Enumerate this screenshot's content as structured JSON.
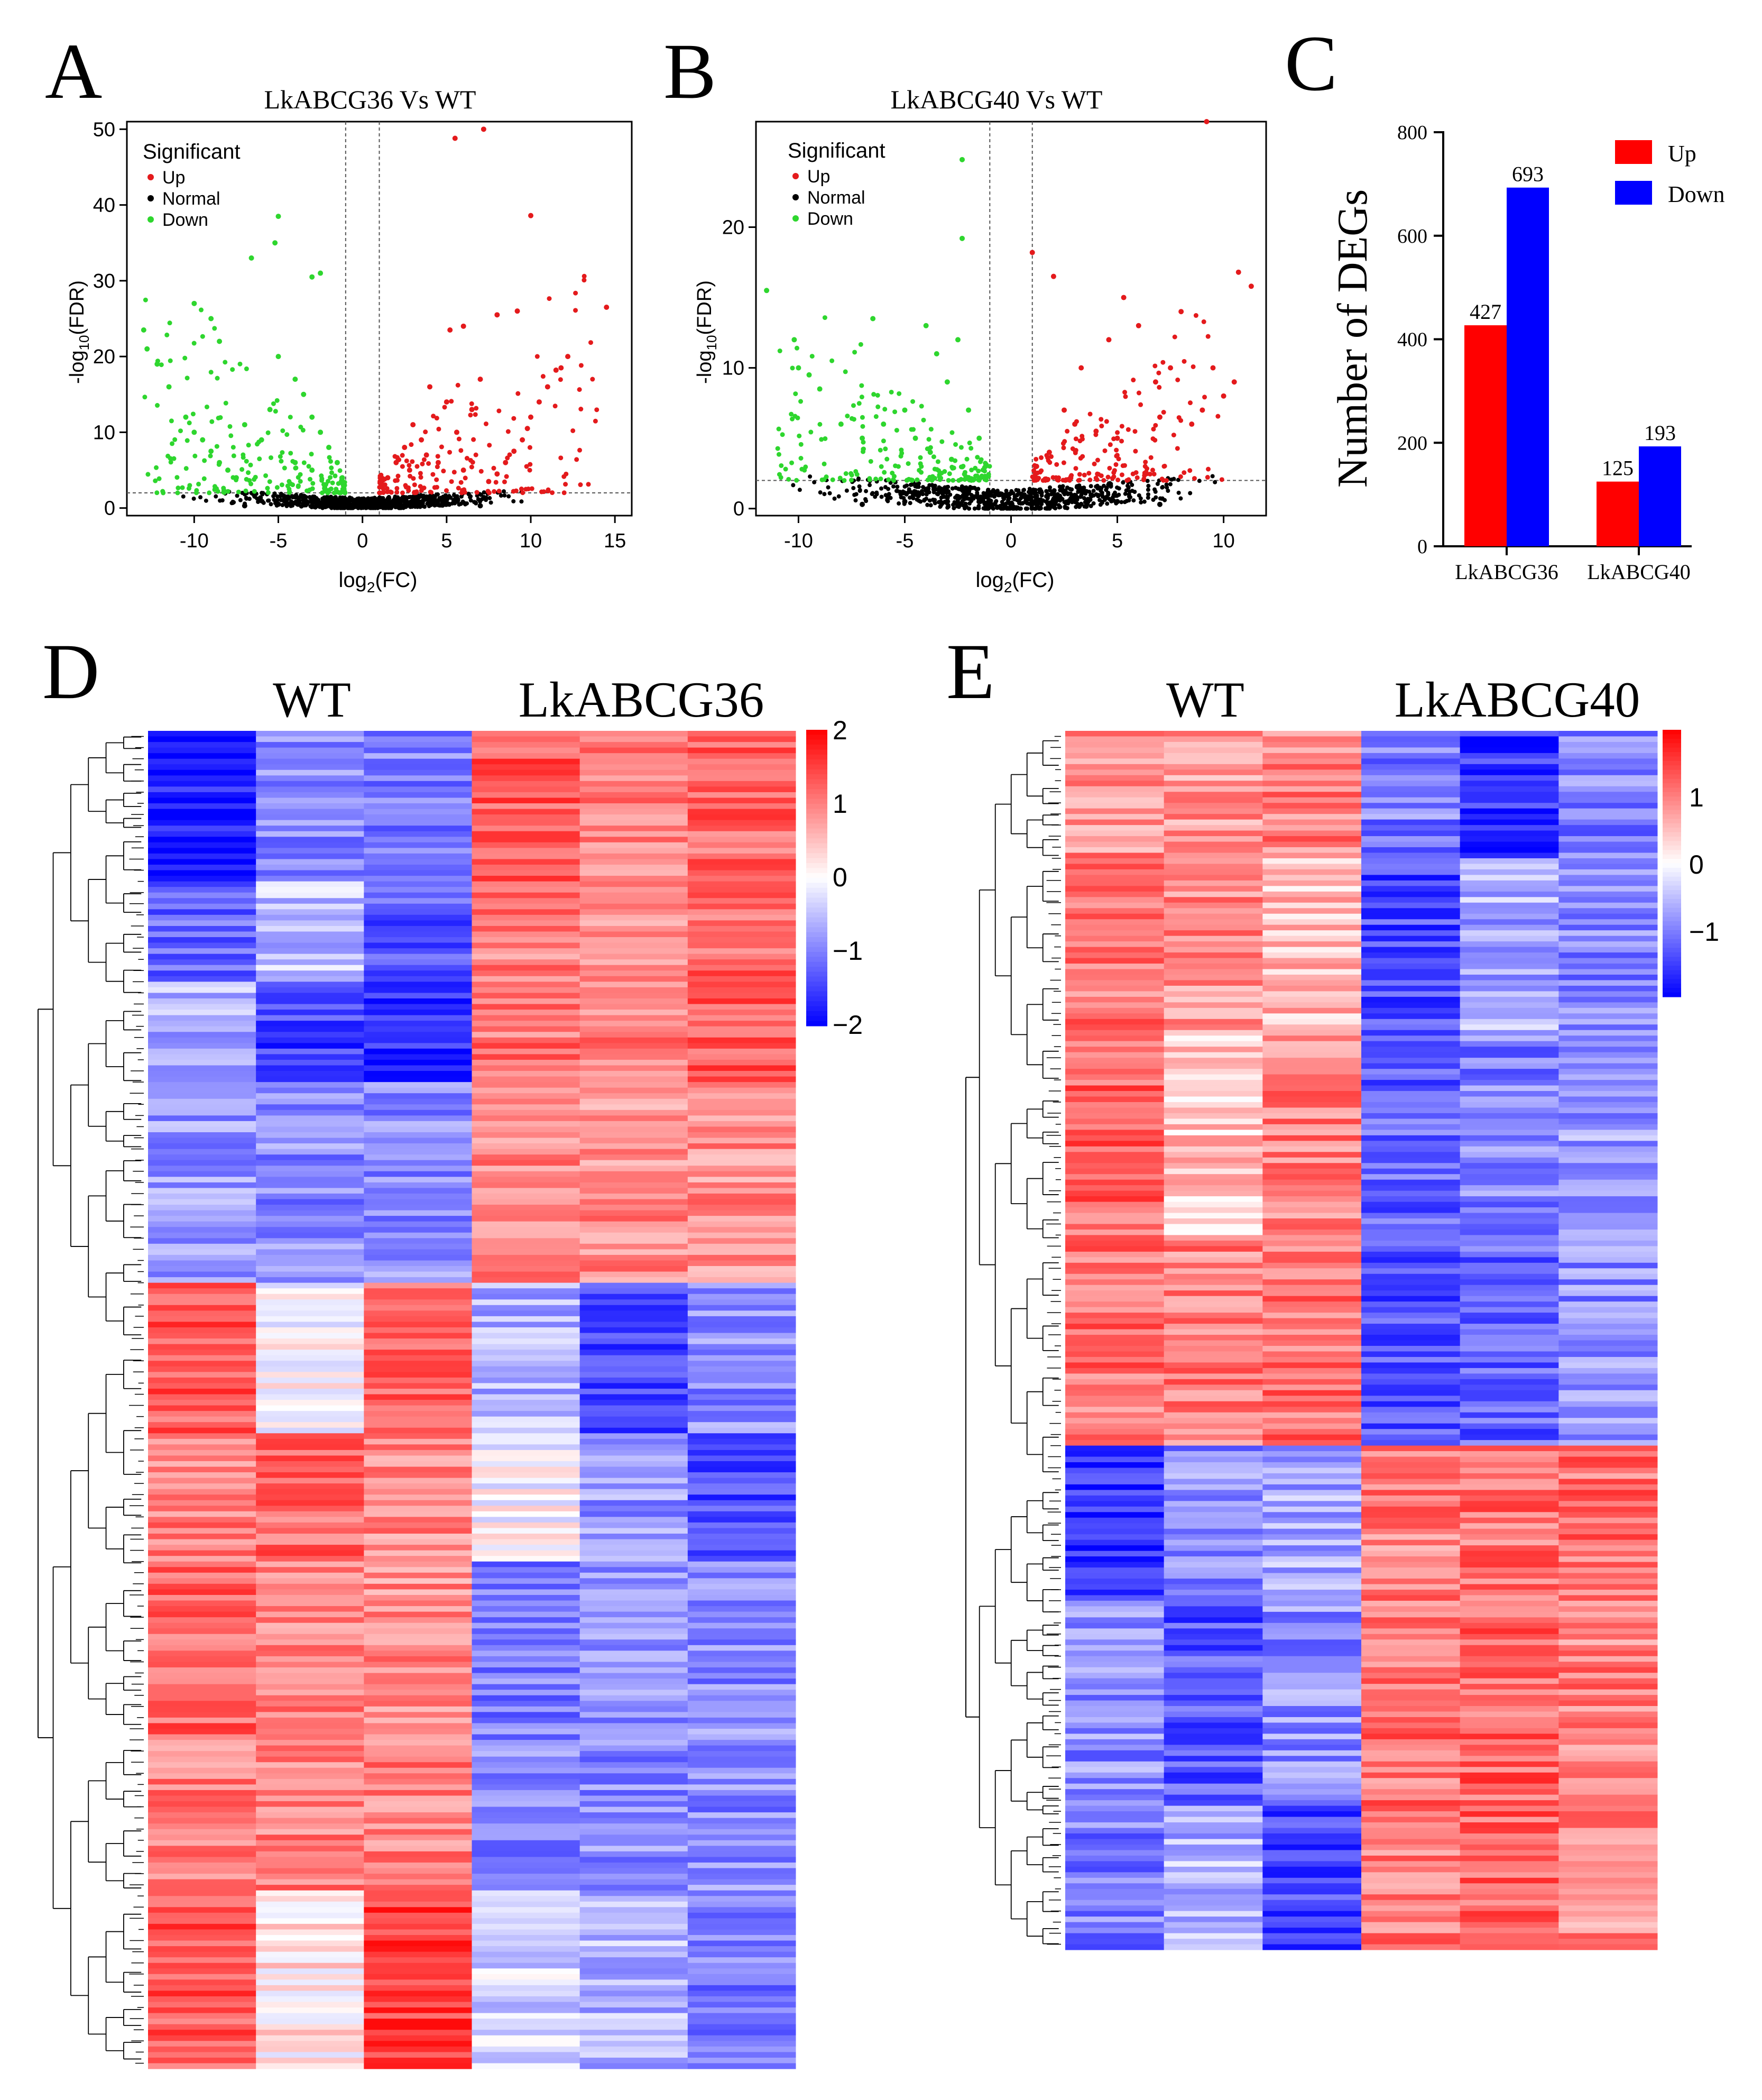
{
  "colors": {
    "up": "#e41a1c",
    "down": "#2ed62e",
    "normal": "#000000",
    "bar_up": "#ff0000",
    "bar_down": "#0000ff",
    "heat_low": "#0000ff",
    "heat_mid": "#ffffff",
    "heat_high": "#ff0000"
  },
  "panels": {
    "A": {
      "letter": "A",
      "title": "LkABCG36 Vs WT",
      "xlabel": "log",
      "xlabel_sub": "2",
      "xlabel_tail": "(FC)",
      "ylabel": "-log",
      "ylabel_sub": "10",
      "ylabel_tail": "(FDR)",
      "legend_title": "Significant",
      "legend": [
        "Up",
        "Normal",
        "Down"
      ],
      "xticks": [
        "-10",
        "-5",
        "0",
        "5",
        "10",
        "15"
      ],
      "yticks": [
        "0",
        "10",
        "20",
        "30",
        "40",
        "50"
      ]
    },
    "B": {
      "letter": "B",
      "title": "LkABCG40 Vs WT",
      "xlabel": "log",
      "xlabel_sub": "2",
      "xlabel_tail": "(FC)",
      "ylabel": "-log",
      "ylabel_sub": "10",
      "ylabel_tail": "(FDR)",
      "legend_title": "Significant",
      "legend": [
        "Up",
        "Normal",
        "Down"
      ],
      "xticks": [
        "-10",
        "-5",
        "0",
        "5",
        "10"
      ],
      "yticks": [
        "0",
        "10",
        "20"
      ]
    },
    "C": {
      "letter": "C",
      "ylabel": "Number of DEGs",
      "legend": [
        "Up",
        "Down"
      ],
      "yticks": [
        "0",
        "200",
        "400",
        "600",
        "800"
      ],
      "labels": [
        "427",
        "693",
        "125",
        "193"
      ]
    },
    "D": {
      "letter": "D",
      "group_left": "WT",
      "group_right": "LkABCG36",
      "scale_ticks": [
        "2",
        "1",
        "0",
        "−1",
        "−2"
      ]
    },
    "E": {
      "letter": "E",
      "group_left": "WT",
      "group_right": "LkABCG40",
      "scale_ticks": [
        "1",
        "0",
        "−1"
      ]
    }
  },
  "chart_data": [
    {
      "panel": "A",
      "type": "scatter",
      "title": "LkABCG36 Vs WT",
      "xlabel": "log2(FC)",
      "ylabel": "-log10(FDR)",
      "xlim": [
        -14,
        16
      ],
      "ylim": [
        -1,
        51
      ],
      "thresholds": {
        "log2fc": [
          -1,
          1
        ],
        "neg_log10_fdr": 2
      },
      "series": [
        {
          "name": "Up",
          "color": "#e41a1c",
          "points": [
            [
              5.5,
              48.8
            ],
            [
              7.2,
              50
            ],
            [
              10,
              38.6
            ],
            [
              14.5,
              26.5
            ],
            [
              9.2,
              26
            ],
            [
              8,
              25.5
            ],
            [
              6,
              24
            ],
            [
              5.2,
              23.5
            ],
            [
              12.2,
              20
            ],
            [
              11.5,
              18.2
            ],
            [
              10.5,
              14
            ],
            [
              10,
              12
            ],
            [
              9.5,
              9
            ],
            [
              9,
              7.5
            ],
            [
              8.5,
              6
            ],
            [
              8,
              4.5
            ],
            [
              7.5,
              3.5
            ],
            [
              4,
              16
            ],
            [
              5,
              14
            ],
            [
              3,
              11
            ],
            [
              2.5,
              8
            ],
            [
              2,
              6
            ],
            [
              1.5,
              4
            ],
            [
              1.2,
              3
            ],
            [
              3.5,
              9
            ],
            [
              6.5,
              13
            ],
            [
              7,
              17
            ],
            [
              4.5,
              6
            ],
            [
              6,
              5
            ],
            [
              11,
              16
            ],
            [
              11.8,
              18.5
            ],
            [
              9.8,
              10.5
            ],
            [
              2.8,
              5
            ],
            [
              3.8,
              7
            ],
            [
              5.6,
              10
            ]
          ]
        },
        {
          "name": "Down",
          "color": "#2ed62e",
          "points": [
            [
              -5,
              38.5
            ],
            [
              -5.2,
              35
            ],
            [
              -3,
              30.5
            ],
            [
              -2.5,
              31
            ],
            [
              -6.6,
              33
            ],
            [
              -13,
              23.5
            ],
            [
              -12.8,
              21
            ],
            [
              -12.2,
              19
            ],
            [
              -11.5,
              16
            ],
            [
              -10.5,
              12
            ],
            [
              -10,
              10
            ],
            [
              -9.5,
              9
            ],
            [
              -9,
              7.5
            ],
            [
              -8.5,
              6
            ],
            [
              -8,
              5
            ],
            [
              -7.5,
              4
            ],
            [
              -10,
              27
            ],
            [
              -9,
              25
            ],
            [
              -8.5,
              22
            ],
            [
              -5,
              20
            ],
            [
              -4,
              17
            ],
            [
              -3.5,
              15
            ],
            [
              -3,
              12
            ],
            [
              -2.5,
              10
            ],
            [
              -2,
              8
            ],
            [
              -1.5,
              6
            ],
            [
              -1.2,
              4
            ],
            [
              -3,
              5
            ],
            [
              -4,
              6
            ],
            [
              -6,
              9
            ],
            [
              -5.5,
              13
            ],
            [
              -7,
              11
            ]
          ]
        },
        {
          "name": "Normal",
          "color": "#000000",
          "points": [
            [
              -5,
              0.5
            ],
            [
              -3,
              0.8
            ],
            [
              -2,
              1.2
            ],
            [
              -1,
              0.5
            ],
            [
              0,
              0.2
            ],
            [
              1,
              0.5
            ],
            [
              2,
              1.2
            ],
            [
              3,
              0.8
            ],
            [
              5,
              0.5
            ],
            [
              7,
              0.3
            ],
            [
              -7,
              0.3
            ],
            [
              -0.5,
              1
            ],
            [
              0.5,
              1
            ],
            [
              -4,
              1.5
            ],
            [
              4,
              1.5
            ]
          ]
        }
      ]
    },
    {
      "panel": "B",
      "type": "scatter",
      "title": "LkABCG40 Vs WT",
      "xlabel": "log2(FC)",
      "ylabel": "-log10(FDR)",
      "xlim": [
        -12,
        12
      ],
      "ylim": [
        -0.5,
        27.5
      ],
      "thresholds": {
        "log2fc": [
          -1,
          1
        ],
        "neg_log10_fdr": 2
      },
      "series": [
        {
          "name": "Up",
          "color": "#e41a1c",
          "points": [
            [
              9.2,
              27.5
            ],
            [
              10.7,
              16.8
            ],
            [
              11.3,
              15.8
            ],
            [
              1,
              18.2
            ],
            [
              2,
              16.5
            ],
            [
              3.3,
              10
            ],
            [
              4.6,
              12
            ],
            [
              5.3,
              15
            ],
            [
              6,
              13
            ],
            [
              8,
              14
            ],
            [
              9.5,
              10
            ],
            [
              10,
              8
            ],
            [
              10.5,
              9
            ],
            [
              9,
              7
            ],
            [
              8.5,
              6
            ],
            [
              7,
              6.5
            ],
            [
              5,
              5
            ],
            [
              4,
              5.5
            ],
            [
              3,
              6
            ],
            [
              2.5,
              7
            ],
            [
              1.8,
              4
            ],
            [
              1.2,
              3
            ],
            [
              7.5,
              10
            ],
            [
              6.8,
              9
            ]
          ]
        },
        {
          "name": "Down",
          "color": "#2ed62e",
          "points": [
            [
              -2.3,
              24.8
            ],
            [
              -2.3,
              19.2
            ],
            [
              -11.5,
              15.5
            ],
            [
              -10.2,
              12
            ],
            [
              -10,
              10
            ],
            [
              -9.5,
              9.5
            ],
            [
              -9,
              8.5
            ],
            [
              -6.5,
              13.5
            ],
            [
              -5,
              7
            ],
            [
              -4,
              13
            ],
            [
              -3.5,
              11
            ],
            [
              -3,
              9
            ],
            [
              -2.5,
              12
            ],
            [
              -2,
              7
            ],
            [
              -1.5,
              5
            ],
            [
              -1.2,
              3
            ],
            [
              -8,
              6
            ],
            [
              -7,
              5
            ],
            [
              -6,
              6
            ],
            [
              -4.5,
              5
            ],
            [
              -3.8,
              4
            ],
            [
              -2.8,
              3.5
            ]
          ]
        },
        {
          "name": "Normal",
          "color": "#000000",
          "points": [
            [
              -5,
              0.5
            ],
            [
              -3,
              0.8
            ],
            [
              -2,
              1.2
            ],
            [
              -1,
              0.5
            ],
            [
              0,
              0.2
            ],
            [
              1,
              0.5
            ],
            [
              2,
              1.2
            ],
            [
              3,
              0.8
            ],
            [
              5,
              0.5
            ],
            [
              7,
              0.3
            ],
            [
              -7,
              0.3
            ],
            [
              -0.5,
              1
            ],
            [
              0.5,
              1
            ]
          ]
        }
      ]
    },
    {
      "panel": "C",
      "type": "bar",
      "xlabel": "",
      "ylabel": "Number of DEGs",
      "ylim": [
        0,
        800
      ],
      "categories": [
        "LkABCG36",
        "LkABCG40"
      ],
      "series": [
        {
          "name": "Up",
          "color": "#ff0000",
          "values": [
            427,
            125
          ]
        },
        {
          "name": "Down",
          "color": "#0000ff",
          "values": [
            693,
            193
          ]
        }
      ]
    },
    {
      "panel": "D",
      "type": "heatmap",
      "columns": [
        "WT",
        "WT",
        "WT",
        "LkABCG36",
        "LkABCG36",
        "LkABCG36"
      ],
      "value_range": [
        -2,
        2
      ],
      "blocks": [
        {
          "weight": 12,
          "values": [
            -1.8,
            -0.9,
            -1.0,
            1.3,
            1.0,
            1.2
          ]
        },
        {
          "weight": 8,
          "values": [
            -1.2,
            -0.5,
            -1.3,
            1.0,
            0.8,
            1.2
          ]
        },
        {
          "weight": 8,
          "values": [
            -0.6,
            -1.5,
            -1.6,
            1.1,
            1.0,
            1.3
          ]
        },
        {
          "weight": 16,
          "values": [
            -0.8,
            -0.9,
            -0.9,
            0.9,
            0.9,
            0.9
          ]
        },
        {
          "weight": 12,
          "values": [
            1.3,
            0.0,
            1.2,
            -0.6,
            -1.4,
            -0.9
          ]
        },
        {
          "weight": 10,
          "values": [
            1.0,
            1.2,
            0.9,
            0.0,
            -0.8,
            -1.4
          ]
        },
        {
          "weight": 14,
          "values": [
            1.2,
            1.0,
            0.9,
            -1.0,
            -0.9,
            -0.9
          ]
        },
        {
          "weight": 12,
          "values": [
            1.0,
            1.0,
            1.0,
            -0.9,
            -0.9,
            -0.9
          ]
        },
        {
          "weight": 14,
          "values": [
            1.3,
            0.2,
            1.5,
            -0.3,
            -0.6,
            -1.0
          ]
        }
      ]
    },
    {
      "panel": "E",
      "type": "heatmap",
      "columns": [
        "WT",
        "WT",
        "WT",
        "LkABCG40",
        "LkABCG40",
        "LkABCG40"
      ],
      "value_range": [
        -1.8,
        1.8
      ],
      "blocks": [
        {
          "weight": 10,
          "values": [
            0.8,
            0.7,
            0.9,
            -0.9,
            -1.5,
            -0.9
          ]
        },
        {
          "weight": 14,
          "values": [
            1.0,
            0.8,
            0.5,
            -1.3,
            -0.6,
            -0.9
          ]
        },
        {
          "weight": 16,
          "values": [
            1.1,
            0.4,
            0.9,
            -1.1,
            -0.9,
            -0.7
          ]
        },
        {
          "weight": 16,
          "values": [
            1.0,
            0.9,
            1.0,
            -1.2,
            -1.1,
            -0.8
          ]
        },
        {
          "weight": 12,
          "values": [
            -1.5,
            -0.8,
            -0.6,
            0.9,
            1.0,
            1.0
          ]
        },
        {
          "weight": 16,
          "values": [
            -0.8,
            -1.2,
            -0.8,
            1.0,
            1.1,
            0.9
          ]
        },
        {
          "weight": 12,
          "values": [
            -0.9,
            -0.5,
            -1.3,
            0.9,
            1.1,
            0.8
          ]
        }
      ]
    }
  ]
}
